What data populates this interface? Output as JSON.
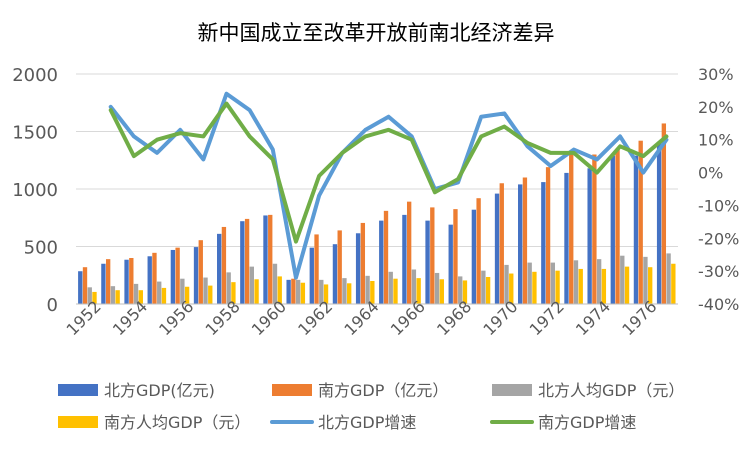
{
  "chart_data": {
    "type": "bar+line",
    "title": "新中国成立至改革开放前南北经济差异",
    "x": [
      1952,
      1953,
      1954,
      1955,
      1956,
      1957,
      1958,
      1959,
      1960,
      1961,
      1962,
      1963,
      1964,
      1965,
      1966,
      1967,
      1968,
      1969,
      1970,
      1971,
      1972,
      1973,
      1974,
      1975,
      1976,
      1977
    ],
    "x_tick_labels": [
      "1952",
      "1954",
      "1956",
      "1958",
      "1960",
      "1962",
      "1964",
      "1966",
      "1968",
      "1970",
      "1972",
      "1974",
      "1976"
    ],
    "y_left": {
      "min": 0,
      "max": 2000,
      "ticks": [
        "0",
        "500",
        "1000",
        "1500",
        "2000"
      ]
    },
    "y_right": {
      "min": -40,
      "max": 30,
      "ticks": [
        "-40%",
        "-30%",
        "-20%",
        "-10%",
        "0%",
        "10%",
        "20%",
        "30%"
      ]
    },
    "bar_series": [
      {
        "name": "北方GDP(亿元)",
        "color": "#4472C4",
        "values": [
          285,
          350,
          385,
          415,
          470,
          495,
          610,
          720,
          770,
          210,
          490,
          520,
          615,
          725,
          775,
          725,
          690,
          820,
          960,
          1040,
          1060,
          1140,
          1180,
          1290,
          1290,
          1410
        ]
      },
      {
        "name": "南方GDP（亿元）",
        "color": "#ED7D31",
        "values": [
          320,
          390,
          400,
          445,
          490,
          555,
          670,
          740,
          775,
          220,
          605,
          640,
          705,
          810,
          890,
          840,
          825,
          920,
          1050,
          1100,
          1190,
          1300,
          1300,
          1350,
          1420,
          1570
        ]
      },
      {
        "name": "北方人均GDP（元）",
        "color": "#A5A5A5",
        "values": [
          145,
          155,
          175,
          195,
          220,
          230,
          275,
          325,
          350,
          210,
          210,
          225,
          245,
          280,
          300,
          270,
          240,
          290,
          340,
          360,
          360,
          380,
          390,
          420,
          410,
          440
        ]
      },
      {
        "name": "南方人均GDP（元）",
        "color": "#FFC000",
        "values": [
          105,
          120,
          120,
          140,
          150,
          160,
          190,
          215,
          240,
          185,
          170,
          180,
          200,
          220,
          225,
          215,
          205,
          235,
          265,
          280,
          290,
          305,
          305,
          325,
          320,
          350
        ]
      }
    ],
    "line_series": [
      {
        "name": "北方GDP增速",
        "color": "#5B9BD5",
        "values": [
          null,
          20,
          11,
          6,
          13,
          4,
          24,
          19,
          7,
          -32,
          -7,
          6,
          13,
          17,
          11,
          -5,
          -3,
          17,
          18,
          8,
          2,
          7,
          4,
          11,
          0,
          10
        ]
      },
      {
        "name": "南方GDP增速",
        "color": "#70AD47",
        "values": [
          null,
          19,
          5,
          10,
          12,
          11,
          21,
          11,
          4,
          -21,
          -1,
          6,
          11,
          13,
          10,
          -6,
          -2,
          11,
          14,
          9,
          6,
          6,
          0,
          8,
          5,
          11
        ]
      }
    ],
    "legend": [
      {
        "label": "北方GDP(亿元)",
        "kind": "bar",
        "color": "#4472C4"
      },
      {
        "label": "南方GDP（亿元）",
        "kind": "bar",
        "color": "#ED7D31"
      },
      {
        "label": "北方人均GDP（元）",
        "kind": "bar",
        "color": "#A5A5A5"
      },
      {
        "label": "南方人均GDP（元）",
        "kind": "bar",
        "color": "#FFC000"
      },
      {
        "label": "北方GDP增速",
        "kind": "line",
        "color": "#5B9BD5"
      },
      {
        "label": "南方GDP增速",
        "kind": "line",
        "color": "#70AD47"
      }
    ]
  }
}
